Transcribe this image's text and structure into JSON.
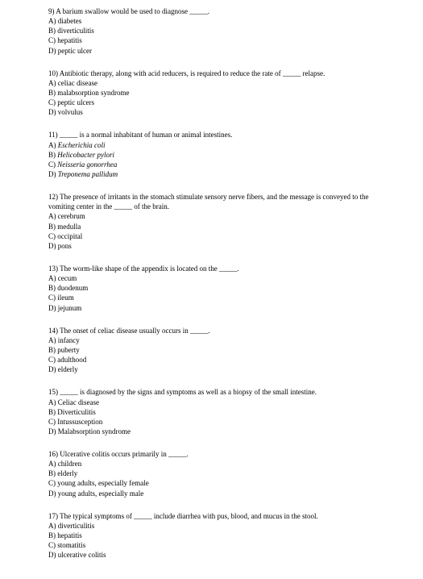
{
  "questions": [
    {
      "num": "9)",
      "text": "A barium swallow would be used to diagnose _____.",
      "opts": [
        "A) diabetes",
        "B) diverticulitis",
        "C) hepatitis",
        "D) peptic ulcer"
      ],
      "italic": [
        false,
        false,
        false,
        false
      ]
    },
    {
      "num": "10)",
      "text": "Antibiotic therapy, along with acid reducers, is required to reduce the rate of _____ relapse.",
      "opts": [
        "A) celiac disease",
        "B) malabsorption syndrome",
        "C) peptic ulcers",
        "D) volvulus"
      ],
      "italic": [
        false,
        false,
        false,
        false
      ]
    },
    {
      "num": "11)",
      "text": "_____ is a normal inhabitant of human or animal intestines.",
      "opts": [
        "A) Escherichia coli",
        "B) Helicobacter pylori",
        "C) Neisseria gonorrhea",
        "D) Treponema pallidum"
      ],
      "italic": [
        true,
        true,
        true,
        true
      ]
    },
    {
      "num": "12)",
      "text": "The presence of irritants in the stomach stimulate sensory nerve fibers, and the message is conveyed to the vomiting center in the _____ of the brain.",
      "opts": [
        "A) cerebrum",
        "B) medulla",
        "C) occipital",
        "D) pons"
      ],
      "italic": [
        false,
        false,
        false,
        false
      ]
    },
    {
      "num": "13)",
      "text": "The worm-like shape of the appendix is located on the _____.",
      "opts": [
        "A) cecum",
        "B) duodenum",
        "C) ileum",
        "D) jejunum"
      ],
      "italic": [
        false,
        false,
        false,
        false
      ]
    },
    {
      "num": "14)",
      "text": "The onset of celiac disease usually occurs in _____.",
      "opts": [
        "A) infancy",
        "B) puberty",
        "C) adulthood",
        "D) elderly"
      ],
      "italic": [
        false,
        false,
        false,
        false
      ]
    },
    {
      "num": "15)",
      "text": "_____ is diagnosed by the signs and symptoms as well as a biopsy of the small intestine.",
      "opts": [
        "A) Celiac disease",
        "B) Diverticulitis",
        "C) Intussusception",
        "D) Malabsorption syndrome"
      ],
      "italic": [
        false,
        false,
        false,
        false
      ]
    },
    {
      "num": "16)",
      "text": "Ulcerative colitis occurs primarily in _____.",
      "opts": [
        "A) children",
        "B) elderly",
        "C) young adults, especially female",
        "D) young adults, especially male"
      ],
      "italic": [
        false,
        false,
        false,
        false
      ]
    },
    {
      "num": "17)",
      "text": "The typical symptoms of _____ include diarrhea with pus, blood, and mucus in the stool.",
      "opts": [
        "A) diverticulitis",
        "B) hepatitis",
        "C) stomatitis",
        "D) ulcerative colitis"
      ],
      "italic": [
        false,
        false,
        false,
        false
      ]
    }
  ]
}
